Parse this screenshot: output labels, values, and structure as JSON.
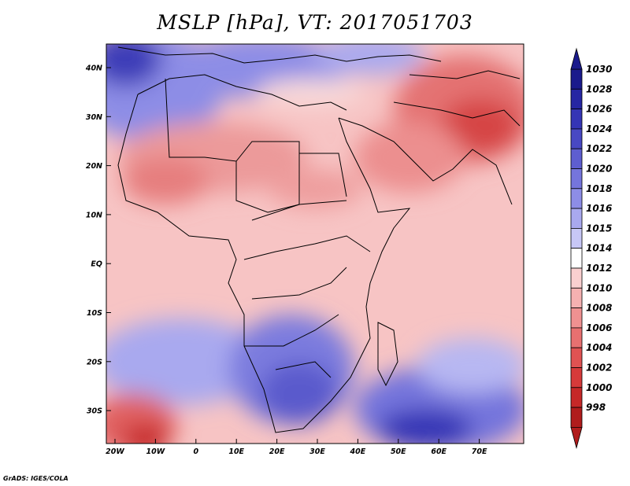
{
  "title": "MSLP [hPa], VT: 2017051703",
  "credit": "GrADS: IGES/COLA",
  "map": {
    "lat_ticks": [
      "40N",
      "30N",
      "20N",
      "10N",
      "EQ",
      "10S",
      "20S",
      "30S"
    ],
    "lon_ticks": [
      "20W",
      "10W",
      "0",
      "10E",
      "20E",
      "30E",
      "40E",
      "50E",
      "60E",
      "70E"
    ]
  },
  "colorbar": {
    "labels": [
      "1030",
      "1028",
      "1026",
      "1024",
      "1022",
      "1020",
      "1018",
      "1016",
      "1015",
      "1014",
      "1012",
      "1010",
      "1008",
      "1006",
      "1004",
      "1002",
      "1000",
      "998"
    ],
    "colors": [
      "#1a1a8c",
      "#2626a3",
      "#3535b5",
      "#4848c3",
      "#5e5ed0",
      "#7575dc",
      "#8d8de6",
      "#a9a9ef",
      "#c7c7f6",
      "#ffffff",
      "#fad0d0",
      "#f5b1b1",
      "#ef9191",
      "#e87070",
      "#e05252",
      "#d63a3a",
      "#c62828",
      "#b01c1c"
    ]
  }
}
